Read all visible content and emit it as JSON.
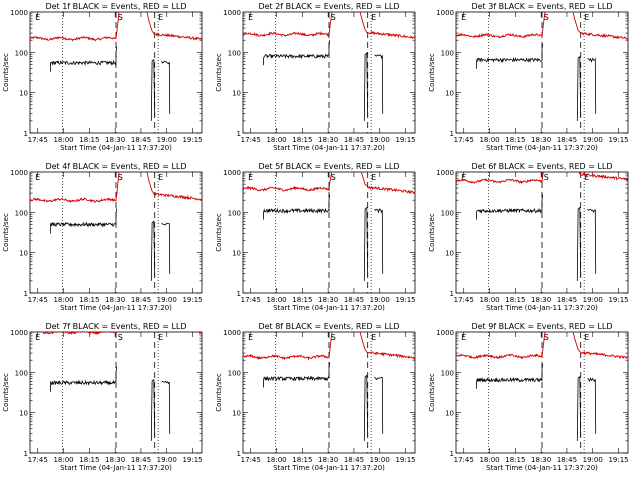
{
  "colors": {
    "events": "#000000",
    "lld": "#d40000",
    "axes": "#000000",
    "background": "#ffffff"
  },
  "chart_data": [
    {
      "type": "line",
      "title": "Det 1f BLACK = Events, RED = LLD",
      "xlabel": "Start Time (04-Jan-11 17:37:20)",
      "ylabel": "Counts/sec",
      "yscale": "log",
      "ylim": [
        1,
        1000
      ],
      "x_tick_labels": [
        "17:45",
        "18:00",
        "18:15",
        "18:30",
        "18:45",
        "19:00",
        "19:15"
      ],
      "y_tick_labels": [
        "1",
        "10",
        "100",
        "1000"
      ],
      "marker_labels": [
        "E",
        "S",
        "E"
      ],
      "lld_level": 220,
      "events_level": 55,
      "lld_tail_level": 210
    },
    {
      "type": "line",
      "title": "Det 2f BLACK = Events, RED = LLD",
      "xlabel": "Start Time (04-Jan-11 17:37:20)",
      "ylabel": "Counts/sec",
      "yscale": "log",
      "ylim": [
        1,
        1000
      ],
      "x_tick_labels": [
        "17:45",
        "18:00",
        "18:15",
        "18:30",
        "18:45",
        "19:00",
        "19:15"
      ],
      "y_tick_labels": [
        "1",
        "10",
        "100",
        "1000"
      ],
      "marker_labels": [
        "E",
        "S",
        "E"
      ],
      "lld_level": 280,
      "events_level": 80,
      "lld_tail_level": 230
    },
    {
      "type": "line",
      "title": "Det 3f BLACK = Events, RED = LLD",
      "xlabel": "Start Time (04-Jan-11 17:37:20)",
      "ylabel": "Counts/sec",
      "yscale": "log",
      "ylim": [
        1,
        1000
      ],
      "x_tick_labels": [
        "17:45",
        "18:00",
        "18:15",
        "18:30",
        "18:45",
        "19:00",
        "19:15"
      ],
      "y_tick_labels": [
        "1",
        "10",
        "100",
        "1000"
      ],
      "marker_labels": [
        "E",
        "S",
        "E"
      ],
      "lld_level": 260,
      "events_level": 65,
      "lld_tail_level": 220
    },
    {
      "type": "line",
      "title": "Det 4f BLACK = Events, RED = LLD",
      "xlabel": "Start Time (04-Jan-11 17:37:20)",
      "ylabel": "Counts/sec",
      "yscale": "log",
      "ylim": [
        1,
        1000
      ],
      "x_tick_labels": [
        "17:45",
        "18:00",
        "18:15",
        "18:30",
        "18:45",
        "19:00",
        "19:15"
      ],
      "y_tick_labels": [
        "1",
        "10",
        "100",
        "1000"
      ],
      "marker_labels": [
        "E",
        "S",
        "E"
      ],
      "lld_level": 200,
      "events_level": 50,
      "lld_tail_level": 210
    },
    {
      "type": "line",
      "title": "Det 5f BLACK = Events, RED = LLD",
      "xlabel": "Start Time (04-Jan-11 17:37:20)",
      "ylabel": "Counts/sec",
      "yscale": "log",
      "ylim": [
        1,
        1000
      ],
      "x_tick_labels": [
        "17:45",
        "18:00",
        "18:15",
        "18:30",
        "18:45",
        "19:00",
        "19:15"
      ],
      "y_tick_labels": [
        "1",
        "10",
        "100",
        "1000"
      ],
      "marker_labels": [
        "E",
        "S",
        "E"
      ],
      "lld_level": 380,
      "events_level": 110,
      "lld_tail_level": 310
    },
    {
      "type": "line",
      "title": "Det 6f BLACK = Events, RED = LLD",
      "xlabel": "Start Time (04-Jan-11 17:37:20)",
      "ylabel": "Counts/sec",
      "yscale": "log",
      "ylim": [
        1,
        1000
      ],
      "x_tick_labels": [
        "17:45",
        "18:00",
        "18:15",
        "18:30",
        "18:45",
        "19:00",
        "19:15"
      ],
      "y_tick_labels": [
        "1",
        "10",
        "100",
        "1000"
      ],
      "marker_labels": [
        "E",
        "S",
        "E"
      ],
      "lld_level": 600,
      "events_level": 110,
      "lld_tail_level": 650
    },
    {
      "type": "line",
      "title": "Det 7f BLACK = Events, RED = LLD",
      "xlabel": "Start Time (04-Jan-11 17:37:20)",
      "ylabel": "Counts/sec",
      "yscale": "log",
      "ylim": [
        1,
        1000
      ],
      "x_tick_labels": [
        "17:45",
        "18:00",
        "18:15",
        "18:30",
        "18:45",
        "19:00",
        "19:15"
      ],
      "y_tick_labels": [
        "1",
        "10",
        "100",
        "1000"
      ],
      "marker_labels": [
        "E",
        "S",
        "E"
      ],
      "lld_level": 1000,
      "events_level": 55,
      "lld_tail_level": 1000
    },
    {
      "type": "line",
      "title": "Det 8f BLACK = Events, RED = LLD",
      "xlabel": "Start Time (04-Jan-11 17:37:20)",
      "ylabel": "Counts/sec",
      "yscale": "log",
      "ylim": [
        1,
        1000
      ],
      "x_tick_labels": [
        "17:45",
        "18:00",
        "18:15",
        "18:30",
        "18:45",
        "19:00",
        "19:15"
      ],
      "y_tick_labels": [
        "1",
        "10",
        "100",
        "1000"
      ],
      "marker_labels": [
        "E",
        "S",
        "E"
      ],
      "lld_level": 240,
      "events_level": 70,
      "lld_tail_level": 230
    },
    {
      "type": "line",
      "title": "Det 9f BLACK = Events, RED = LLD",
      "xlabel": "Start Time (04-Jan-11 17:37:20)",
      "ylabel": "Counts/sec",
      "yscale": "log",
      "ylim": [
        1,
        1000
      ],
      "x_tick_labels": [
        "17:45",
        "18:00",
        "18:15",
        "18:30",
        "18:45",
        "19:00",
        "19:15"
      ],
      "y_tick_labels": [
        "1",
        "10",
        "100",
        "1000"
      ],
      "marker_labels": [
        "E",
        "S",
        "E"
      ],
      "lld_level": 250,
      "events_level": 65,
      "lld_tail_level": 230
    }
  ]
}
